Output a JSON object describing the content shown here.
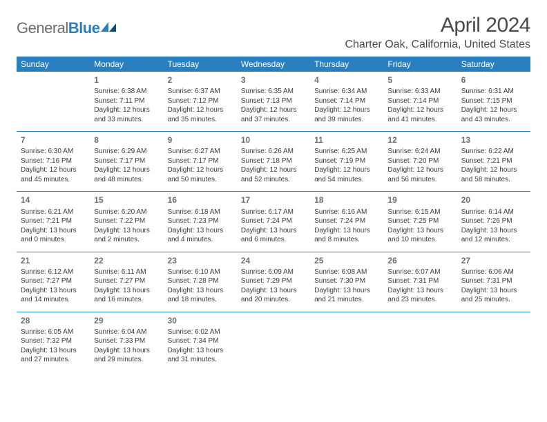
{
  "brand": {
    "word1": "General",
    "word2": "Blue"
  },
  "title": "April 2024",
  "location": "Charter Oak, California, United States",
  "colors": {
    "header_bg": "#2a7fbf",
    "header_text": "#ffffff",
    "divider": "#2a7fbf",
    "daynum": "#6d6d6d",
    "body_text": "#3a3a3a",
    "title_text": "#4a4a4a",
    "logo_gray": "#6d6d6d",
    "logo_blue": "#2a7fbf",
    "page_bg": "#ffffff"
  },
  "day_headers": [
    "Sunday",
    "Monday",
    "Tuesday",
    "Wednesday",
    "Thursday",
    "Friday",
    "Saturday"
  ],
  "weeks": [
    [
      null,
      {
        "d": "1",
        "sr": "Sunrise: 6:38 AM",
        "ss": "Sunset: 7:11 PM",
        "dl1": "Daylight: 12 hours",
        "dl2": "and 33 minutes."
      },
      {
        "d": "2",
        "sr": "Sunrise: 6:37 AM",
        "ss": "Sunset: 7:12 PM",
        "dl1": "Daylight: 12 hours",
        "dl2": "and 35 minutes."
      },
      {
        "d": "3",
        "sr": "Sunrise: 6:35 AM",
        "ss": "Sunset: 7:13 PM",
        "dl1": "Daylight: 12 hours",
        "dl2": "and 37 minutes."
      },
      {
        "d": "4",
        "sr": "Sunrise: 6:34 AM",
        "ss": "Sunset: 7:14 PM",
        "dl1": "Daylight: 12 hours",
        "dl2": "and 39 minutes."
      },
      {
        "d": "5",
        "sr": "Sunrise: 6:33 AM",
        "ss": "Sunset: 7:14 PM",
        "dl1": "Daylight: 12 hours",
        "dl2": "and 41 minutes."
      },
      {
        "d": "6",
        "sr": "Sunrise: 6:31 AM",
        "ss": "Sunset: 7:15 PM",
        "dl1": "Daylight: 12 hours",
        "dl2": "and 43 minutes."
      }
    ],
    [
      {
        "d": "7",
        "sr": "Sunrise: 6:30 AM",
        "ss": "Sunset: 7:16 PM",
        "dl1": "Daylight: 12 hours",
        "dl2": "and 45 minutes."
      },
      {
        "d": "8",
        "sr": "Sunrise: 6:29 AM",
        "ss": "Sunset: 7:17 PM",
        "dl1": "Daylight: 12 hours",
        "dl2": "and 48 minutes."
      },
      {
        "d": "9",
        "sr": "Sunrise: 6:27 AM",
        "ss": "Sunset: 7:17 PM",
        "dl1": "Daylight: 12 hours",
        "dl2": "and 50 minutes."
      },
      {
        "d": "10",
        "sr": "Sunrise: 6:26 AM",
        "ss": "Sunset: 7:18 PM",
        "dl1": "Daylight: 12 hours",
        "dl2": "and 52 minutes."
      },
      {
        "d": "11",
        "sr": "Sunrise: 6:25 AM",
        "ss": "Sunset: 7:19 PM",
        "dl1": "Daylight: 12 hours",
        "dl2": "and 54 minutes."
      },
      {
        "d": "12",
        "sr": "Sunrise: 6:24 AM",
        "ss": "Sunset: 7:20 PM",
        "dl1": "Daylight: 12 hours",
        "dl2": "and 56 minutes."
      },
      {
        "d": "13",
        "sr": "Sunrise: 6:22 AM",
        "ss": "Sunset: 7:21 PM",
        "dl1": "Daylight: 12 hours",
        "dl2": "and 58 minutes."
      }
    ],
    [
      {
        "d": "14",
        "sr": "Sunrise: 6:21 AM",
        "ss": "Sunset: 7:21 PM",
        "dl1": "Daylight: 13 hours",
        "dl2": "and 0 minutes."
      },
      {
        "d": "15",
        "sr": "Sunrise: 6:20 AM",
        "ss": "Sunset: 7:22 PM",
        "dl1": "Daylight: 13 hours",
        "dl2": "and 2 minutes."
      },
      {
        "d": "16",
        "sr": "Sunrise: 6:18 AM",
        "ss": "Sunset: 7:23 PM",
        "dl1": "Daylight: 13 hours",
        "dl2": "and 4 minutes."
      },
      {
        "d": "17",
        "sr": "Sunrise: 6:17 AM",
        "ss": "Sunset: 7:24 PM",
        "dl1": "Daylight: 13 hours",
        "dl2": "and 6 minutes."
      },
      {
        "d": "18",
        "sr": "Sunrise: 6:16 AM",
        "ss": "Sunset: 7:24 PM",
        "dl1": "Daylight: 13 hours",
        "dl2": "and 8 minutes."
      },
      {
        "d": "19",
        "sr": "Sunrise: 6:15 AM",
        "ss": "Sunset: 7:25 PM",
        "dl1": "Daylight: 13 hours",
        "dl2": "and 10 minutes."
      },
      {
        "d": "20",
        "sr": "Sunrise: 6:14 AM",
        "ss": "Sunset: 7:26 PM",
        "dl1": "Daylight: 13 hours",
        "dl2": "and 12 minutes."
      }
    ],
    [
      {
        "d": "21",
        "sr": "Sunrise: 6:12 AM",
        "ss": "Sunset: 7:27 PM",
        "dl1": "Daylight: 13 hours",
        "dl2": "and 14 minutes."
      },
      {
        "d": "22",
        "sr": "Sunrise: 6:11 AM",
        "ss": "Sunset: 7:27 PM",
        "dl1": "Daylight: 13 hours",
        "dl2": "and 16 minutes."
      },
      {
        "d": "23",
        "sr": "Sunrise: 6:10 AM",
        "ss": "Sunset: 7:28 PM",
        "dl1": "Daylight: 13 hours",
        "dl2": "and 18 minutes."
      },
      {
        "d": "24",
        "sr": "Sunrise: 6:09 AM",
        "ss": "Sunset: 7:29 PM",
        "dl1": "Daylight: 13 hours",
        "dl2": "and 20 minutes."
      },
      {
        "d": "25",
        "sr": "Sunrise: 6:08 AM",
        "ss": "Sunset: 7:30 PM",
        "dl1": "Daylight: 13 hours",
        "dl2": "and 21 minutes."
      },
      {
        "d": "26",
        "sr": "Sunrise: 6:07 AM",
        "ss": "Sunset: 7:31 PM",
        "dl1": "Daylight: 13 hours",
        "dl2": "and 23 minutes."
      },
      {
        "d": "27",
        "sr": "Sunrise: 6:06 AM",
        "ss": "Sunset: 7:31 PM",
        "dl1": "Daylight: 13 hours",
        "dl2": "and 25 minutes."
      }
    ],
    [
      {
        "d": "28",
        "sr": "Sunrise: 6:05 AM",
        "ss": "Sunset: 7:32 PM",
        "dl1": "Daylight: 13 hours",
        "dl2": "and 27 minutes."
      },
      {
        "d": "29",
        "sr": "Sunrise: 6:04 AM",
        "ss": "Sunset: 7:33 PM",
        "dl1": "Daylight: 13 hours",
        "dl2": "and 29 minutes."
      },
      {
        "d": "30",
        "sr": "Sunrise: 6:02 AM",
        "ss": "Sunset: 7:34 PM",
        "dl1": "Daylight: 13 hours",
        "dl2": "and 31 minutes."
      },
      null,
      null,
      null,
      null
    ]
  ]
}
